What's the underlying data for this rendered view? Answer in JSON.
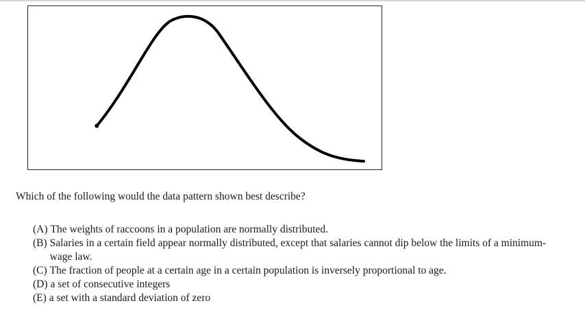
{
  "question": {
    "prompt": "Which of the following would the data pattern shown best describe?"
  },
  "choices": [
    {
      "letter": "(A)",
      "text": "The weights of raccoons in a population are normally distributed."
    },
    {
      "letter": "(B)",
      "text": "Salaries in a certain field appear normally distributed, except that salaries cannot dip below the limits of a minimum-wage law."
    },
    {
      "letter": "(C)",
      "text": "The fraction of people at a certain age in a certain population is inversely proportional to age."
    },
    {
      "letter": "(D)",
      "text": "a set of consecutive integers"
    },
    {
      "letter": "(E)",
      "text": "a set with a standard deviation of zero"
    }
  ],
  "figure": {
    "curve_color": "#000000",
    "border_color": "#222222"
  }
}
